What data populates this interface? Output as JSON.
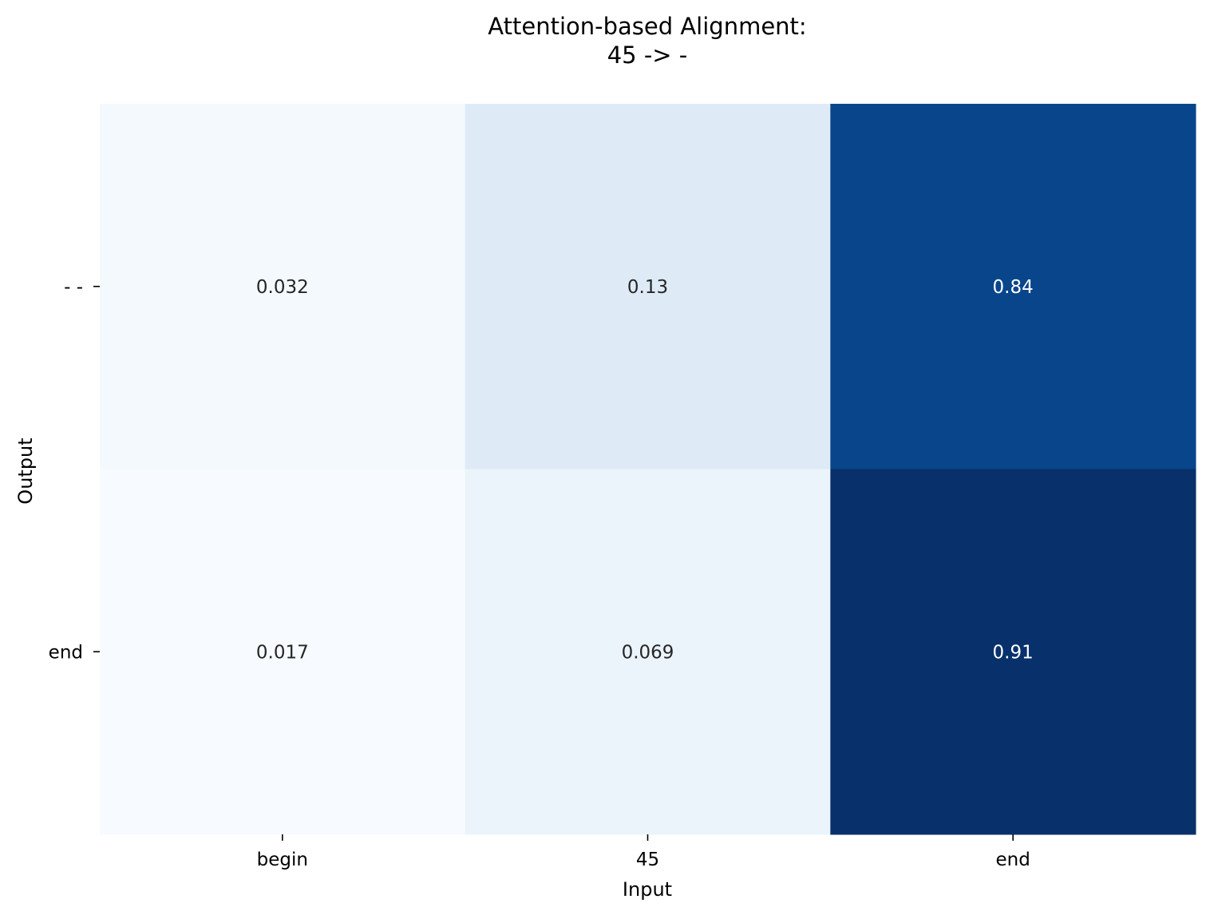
{
  "chart_data": {
    "type": "heatmap",
    "title": [
      "Attention-based Alignment:",
      "45 -> -"
    ],
    "xlabel": "Input",
    "ylabel": "Output",
    "x_categories": [
      "begin",
      "45",
      "end"
    ],
    "y_categories": [
      "- -",
      "end"
    ],
    "values": [
      [
        0.032,
        0.13,
        0.84
      ],
      [
        0.017,
        0.069,
        0.91
      ]
    ],
    "value_labels": [
      [
        "0.032",
        "0.13",
        "0.84"
      ],
      [
        "0.017",
        "0.069",
        "0.91"
      ]
    ],
    "colormap": "Blues",
    "colorbar": false,
    "annotations": true
  }
}
